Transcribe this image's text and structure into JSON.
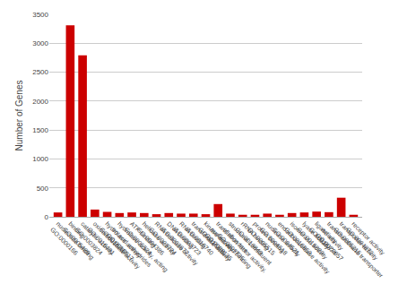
{
  "chart_data": {
    "type": "bar",
    "categories": [
      "nucleotide binding\nGO:0000166",
      "binding\nGO:0005488",
      "catalytic activity\nGO:0003824",
      "oxidoreductase activity\nGO:0016491",
      "hydrolase activity\nGO:0016787",
      "hydrolase activity, acting\non acid anhydrides\nGO:0016817",
      "ATP binding\nGO:0005524",
      "helicase activity\nGO:0004386",
      "RNA helicase activity\nGO:0003724",
      "DNA binding\nGO:0003677",
      "RNA binding\nGO:0003723",
      "transferase activity\nGO:0016740",
      "kinase activity\nGO:0016301",
      "translation factor activity,\nnucleic acid binding\nGO:0008135",
      "structural constituent\nof ribosome\nGO:0003735",
      "rRNA binding\nGO:0019843",
      "protein binding\nGO:0005515",
      "nuclease activity\nGO:0004518",
      "endoribonuclease activity\nGO:0004521",
      "isomerase activity\nGO:0016853",
      "lyase activity\nGO:0016829",
      "ligase activity\nGO:0016874",
      "transmembrane transporter\nactivity\nGO:0022857",
      "transporter activity\nGO:0005215",
      "receptor activity\nGO:0004872"
    ],
    "values": [
      75,
      3310,
      2790,
      125,
      85,
      65,
      75,
      65,
      45,
      65,
      55,
      55,
      45,
      220,
      55,
      35,
      35,
      55,
      35,
      65,
      75,
      90,
      80,
      330,
      35
    ],
    "color": "#cc0000",
    "ylabel": "Number of Genes",
    "ylim": [
      0,
      3500
    ],
    "yticks": [
      0,
      500,
      1000,
      1500,
      2000,
      2500,
      3000,
      3500
    ],
    "grid": true
  }
}
